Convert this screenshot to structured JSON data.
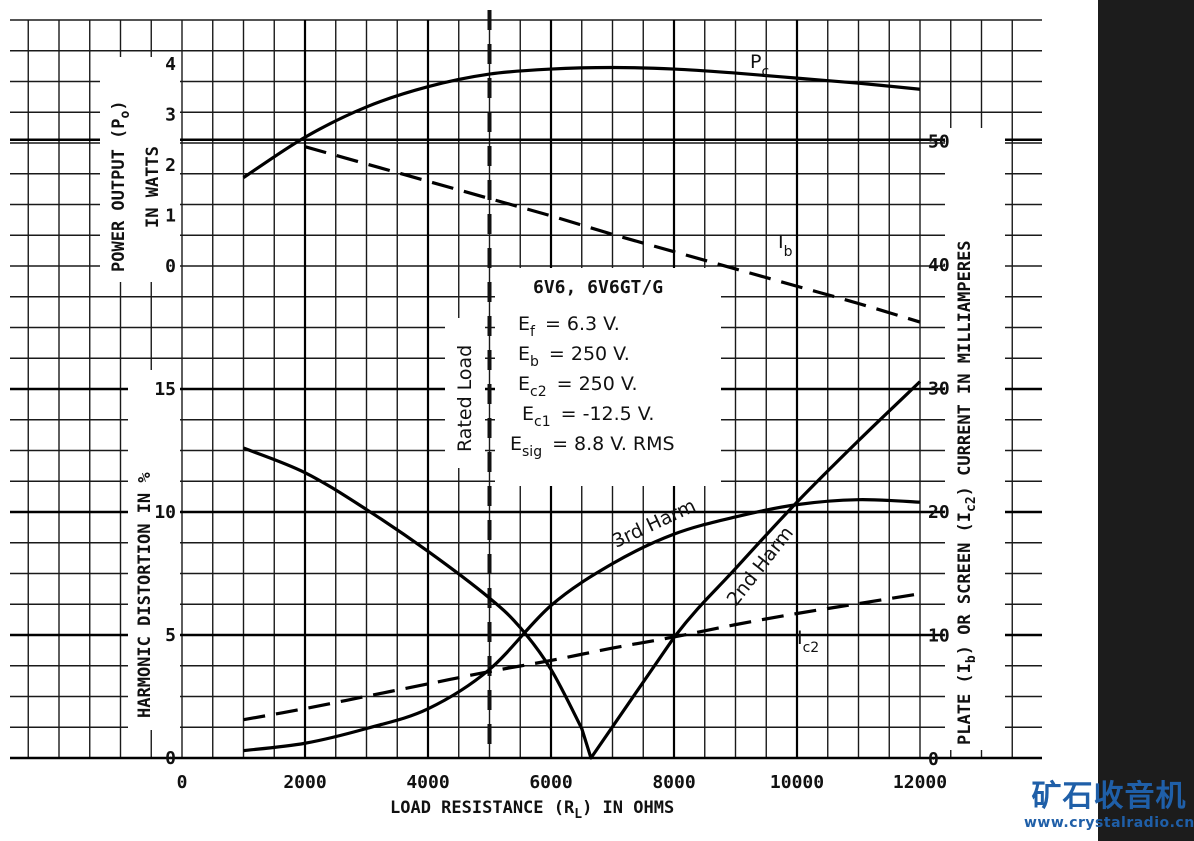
{
  "chart_data": {
    "type": "line",
    "x_axis": {
      "label": "LOAD RESISTANCE (R",
      "label_sub": "L",
      "label_tail": ") IN OHMS",
      "range": [
        0,
        12000
      ],
      "tick_labels": [
        "0",
        "2000",
        "4000",
        "6000",
        "8000",
        "10000",
        "12000"
      ]
    },
    "power_axis": {
      "label_line1": "POWER OUTPUT (P",
      "label_sub": "o",
      "label_line1_tail": ")",
      "label_line2": "IN WATTS",
      "range": [
        0,
        4
      ],
      "tick_labels": [
        "0",
        "1",
        "2",
        "3",
        "4"
      ]
    },
    "distortion_axis": {
      "label": "HARMONIC DISTORTION IN %",
      "range": [
        0,
        20
      ],
      "tick_labels": [
        "0",
        "5",
        "10",
        "15"
      ]
    },
    "current_axis": {
      "label_a": "PLATE (I",
      "label_a_sub": "b",
      "label_b": ") OR SCREEN (I",
      "label_b_sub": "c2",
      "label_c": ") CURRENT IN MILLIAMPERES",
      "range": [
        0,
        50
      ],
      "tick_labels": [
        "0",
        "10",
        "20",
        "30",
        "40",
        "50"
      ]
    },
    "rated_load": {
      "x": 5000,
      "label": "Rated Load"
    },
    "series": [
      {
        "name": "P",
        "sub": "c",
        "axis": "power",
        "style": "solid",
        "x": [
          1000,
          2000,
          3000,
          4000,
          5000,
          6000,
          7000,
          8000,
          9000,
          10000,
          11000,
          12000
        ],
        "y": [
          1.75,
          2.55,
          3.15,
          3.55,
          3.8,
          3.9,
          3.93,
          3.9,
          3.82,
          3.72,
          3.62,
          3.5
        ]
      },
      {
        "name": "I",
        "sub": "b",
        "axis": "current",
        "style": "dashed",
        "x": [
          2000,
          3000,
          4000,
          5000,
          6000,
          7000,
          8000,
          9000,
          10000,
          11000,
          12000
        ],
        "y": [
          49.5,
          48.1,
          46.7,
          45.3,
          43.9,
          42.4,
          41.0,
          39.6,
          38.2,
          36.8,
          35.3
        ]
      },
      {
        "name": "I",
        "sub": "c2",
        "axis": "current",
        "style": "dashed",
        "x": [
          1000,
          2000,
          3000,
          4000,
          5000,
          6000,
          7000,
          8000,
          9000,
          10000,
          11000,
          12000
        ],
        "y": [
          3.1,
          4.0,
          5.0,
          6.0,
          7.0,
          7.9,
          8.9,
          9.8,
          10.8,
          11.7,
          12.5,
          13.3
        ]
      },
      {
        "name": "2nd Harm",
        "axis": "distortion",
        "style": "solid",
        "x": [
          1000,
          2000,
          3000,
          4000,
          5000,
          5500,
          6000,
          6500,
          6650,
          8000,
          9000,
          10000,
          11000,
          12000
        ],
        "y": [
          12.6,
          11.6,
          10.1,
          8.4,
          6.5,
          5.3,
          3.6,
          1.2,
          0.0,
          4.9,
          7.7,
          10.4,
          12.9,
          15.3
        ]
      },
      {
        "name": "3rd Harm",
        "axis": "distortion",
        "style": "solid",
        "x": [
          1000,
          2000,
          3000,
          4000,
          5000,
          6000,
          7000,
          8000,
          9000,
          10000,
          11000,
          12000
        ],
        "y": [
          0.3,
          0.6,
          1.2,
          2.0,
          3.6,
          6.2,
          7.9,
          9.1,
          9.8,
          10.3,
          10.5,
          10.4
        ]
      }
    ],
    "legend_box": {
      "title": "6V6, 6V6GT/G",
      "lines": [
        {
          "sym": "E",
          "sub": "f",
          "text": "= 6.3 V."
        },
        {
          "sym": "E",
          "sub": "b",
          "text": "= 250 V."
        },
        {
          "sym": "E",
          "sub": "c2",
          "text": "= 250 V."
        },
        {
          "sym": "E",
          "sub": "c1",
          "text": "= -12.5 V."
        },
        {
          "sym": "E",
          "sub": "sig",
          "text": "= 8.8 V. RMS"
        }
      ]
    },
    "grid": true
  },
  "brand": {
    "chinese": "矿石收音机",
    "url": "www.crystalradio.cn"
  },
  "colors": {
    "ink": "#111111",
    "grid": "#1a1a1a",
    "paper": "#ffffff",
    "brand": "#1f5fa8",
    "sidebar": "#1c1c1c"
  }
}
